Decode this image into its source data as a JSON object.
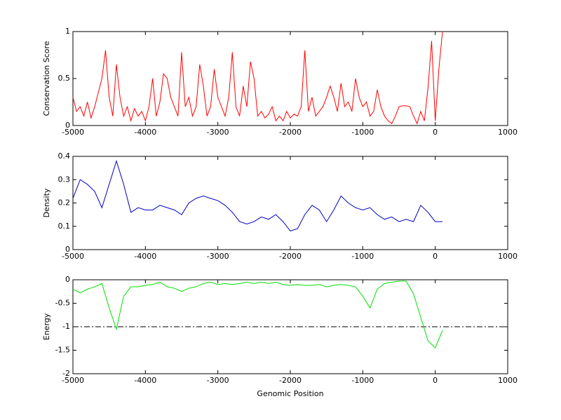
{
  "chart_data": [
    {
      "type": "line",
      "ylabel": "Conservation Score",
      "color": "#ff0000",
      "xlim": [
        -5000,
        1000
      ],
      "xticks": [
        -5000,
        -4000,
        -3000,
        -2000,
        -1000,
        0,
        1000
      ],
      "ylim": [
        0,
        1
      ],
      "yticks": [
        0,
        0.5,
        1
      ],
      "x": [
        -5000,
        -4950,
        -4900,
        -4850,
        -4800,
        -4750,
        -4700,
        -4650,
        -4600,
        -4550,
        -4500,
        -4450,
        -4400,
        -4350,
        -4300,
        -4250,
        -4200,
        -4150,
        -4100,
        -4050,
        -4000,
        -3950,
        -3900,
        -3850,
        -3800,
        -3750,
        -3700,
        -3650,
        -3600,
        -3550,
        -3500,
        -3450,
        -3400,
        -3350,
        -3300,
        -3250,
        -3200,
        -3150,
        -3100,
        -3050,
        -3000,
        -2950,
        -2900,
        -2850,
        -2800,
        -2750,
        -2700,
        -2650,
        -2600,
        -2550,
        -2500,
        -2450,
        -2400,
        -2350,
        -2300,
        -2250,
        -2200,
        -2150,
        -2100,
        -2050,
        -2000,
        -1950,
        -1900,
        -1850,
        -1800,
        -1750,
        -1700,
        -1650,
        -1600,
        -1550,
        -1500,
        -1450,
        -1400,
        -1350,
        -1300,
        -1250,
        -1200,
        -1150,
        -1100,
        -1050,
        -1000,
        -950,
        -900,
        -850,
        -800,
        -750,
        -700,
        -650,
        -600,
        -550,
        -500,
        -450,
        -400,
        -350,
        -300,
        -250,
        -200,
        -150,
        -100,
        -50,
        0,
        50,
        100
      ],
      "values": [
        0.3,
        0.15,
        0.2,
        0.1,
        0.25,
        0.08,
        0.2,
        0.35,
        0.5,
        0.8,
        0.3,
        0.1,
        0.65,
        0.3,
        0.1,
        0.2,
        0.05,
        0.18,
        0.1,
        0.15,
        0.05,
        0.2,
        0.5,
        0.1,
        0.25,
        0.55,
        0.5,
        0.3,
        0.2,
        0.1,
        0.78,
        0.2,
        0.3,
        0.1,
        0.2,
        0.65,
        0.42,
        0.1,
        0.2,
        0.6,
        0.3,
        0.2,
        0.1,
        0.3,
        0.78,
        0.2,
        0.1,
        0.42,
        0.2,
        0.68,
        0.5,
        0.1,
        0.15,
        0.08,
        0.12,
        0.2,
        0.05,
        0.1,
        0.05,
        0.15,
        0.08,
        0.12,
        0.1,
        0.2,
        0.8,
        0.15,
        0.3,
        0.1,
        0.15,
        0.2,
        0.3,
        0.42,
        0.3,
        0.15,
        0.45,
        0.2,
        0.25,
        0.15,
        0.5,
        0.3,
        0.2,
        0.25,
        0.1,
        0.15,
        0.38,
        0.2,
        0.1,
        0.05,
        0.02,
        0.1,
        0.2,
        0.21,
        0.21,
        0.2,
        0.1,
        0.02,
        0.15,
        0.05,
        0.4,
        0.9,
        0.05,
        0.6,
        1
      ]
    },
    {
      "type": "line",
      "ylabel": "Density",
      "color": "#0000c0",
      "xlim": [
        -5000,
        1000
      ],
      "xticks": [
        -5000,
        -4000,
        -3000,
        -2000,
        -1000,
        0,
        1000
      ],
      "ylim": [
        0,
        0.4
      ],
      "yticks": [
        0,
        0.1,
        0.2,
        0.3,
        0.4
      ],
      "x": [
        -5000,
        -4900,
        -4800,
        -4700,
        -4600,
        -4500,
        -4400,
        -4300,
        -4200,
        -4100,
        -4000,
        -3900,
        -3800,
        -3700,
        -3600,
        -3500,
        -3400,
        -3300,
        -3200,
        -3100,
        -3000,
        -2900,
        -2800,
        -2700,
        -2600,
        -2500,
        -2400,
        -2300,
        -2200,
        -2100,
        -2000,
        -1900,
        -1800,
        -1700,
        -1600,
        -1500,
        -1400,
        -1300,
        -1200,
        -1100,
        -1000,
        -900,
        -800,
        -700,
        -600,
        -500,
        -400,
        -300,
        -200,
        -100,
        0,
        100
      ],
      "values": [
        0.22,
        0.3,
        0.28,
        0.25,
        0.18,
        0.28,
        0.38,
        0.28,
        0.16,
        0.18,
        0.17,
        0.17,
        0.19,
        0.18,
        0.17,
        0.15,
        0.2,
        0.22,
        0.23,
        0.22,
        0.21,
        0.19,
        0.16,
        0.12,
        0.11,
        0.12,
        0.14,
        0.13,
        0.15,
        0.12,
        0.08,
        0.09,
        0.15,
        0.19,
        0.17,
        0.12,
        0.17,
        0.23,
        0.2,
        0.18,
        0.17,
        0.18,
        0.15,
        0.13,
        0.14,
        0.12,
        0.13,
        0.12,
        0.19,
        0.16,
        0.12,
        0.12
      ]
    },
    {
      "type": "line",
      "ylabel": "Energy",
      "xlabel": "Genomic Position",
      "color": "#00e000",
      "xlim": [
        -5000,
        1000
      ],
      "xticks": [
        -5000,
        -4000,
        -3000,
        -2000,
        -1000,
        0,
        1000
      ],
      "ylim": [
        -2,
        0
      ],
      "yticks": [
        -2,
        -1.5,
        -1,
        -0.5,
        0
      ],
      "reference_line": {
        "value": -1,
        "color": "#000000",
        "dash": "dash-dot"
      },
      "x": [
        -5000,
        -4900,
        -4800,
        -4700,
        -4600,
        -4500,
        -4400,
        -4300,
        -4200,
        -4100,
        -4000,
        -3900,
        -3800,
        -3700,
        -3600,
        -3500,
        -3400,
        -3300,
        -3200,
        -3100,
        -3000,
        -2900,
        -2800,
        -2700,
        -2600,
        -2500,
        -2400,
        -2300,
        -2200,
        -2100,
        -2000,
        -1900,
        -1800,
        -1700,
        -1600,
        -1500,
        -1400,
        -1300,
        -1200,
        -1100,
        -1000,
        -900,
        -800,
        -700,
        -600,
        -500,
        -400,
        -300,
        -200,
        -100,
        0,
        100
      ],
      "values": [
        -0.2,
        -0.28,
        -0.2,
        -0.15,
        -0.08,
        -0.6,
        -1.05,
        -0.35,
        -0.15,
        -0.15,
        -0.12,
        -0.1,
        -0.05,
        -0.15,
        -0.18,
        -0.25,
        -0.18,
        -0.15,
        -0.08,
        -0.05,
        -0.1,
        -0.08,
        -0.1,
        -0.08,
        -0.05,
        -0.08,
        -0.05,
        -0.08,
        -0.05,
        -0.1,
        -0.12,
        -0.1,
        -0.12,
        -0.12,
        -0.1,
        -0.15,
        -0.12,
        -0.1,
        -0.12,
        -0.15,
        -0.35,
        -0.6,
        -0.2,
        -0.08,
        -0.05,
        -0.03,
        -0.03,
        -0.3,
        -0.8,
        -1.3,
        -1.45,
        -1.08
      ]
    }
  ]
}
